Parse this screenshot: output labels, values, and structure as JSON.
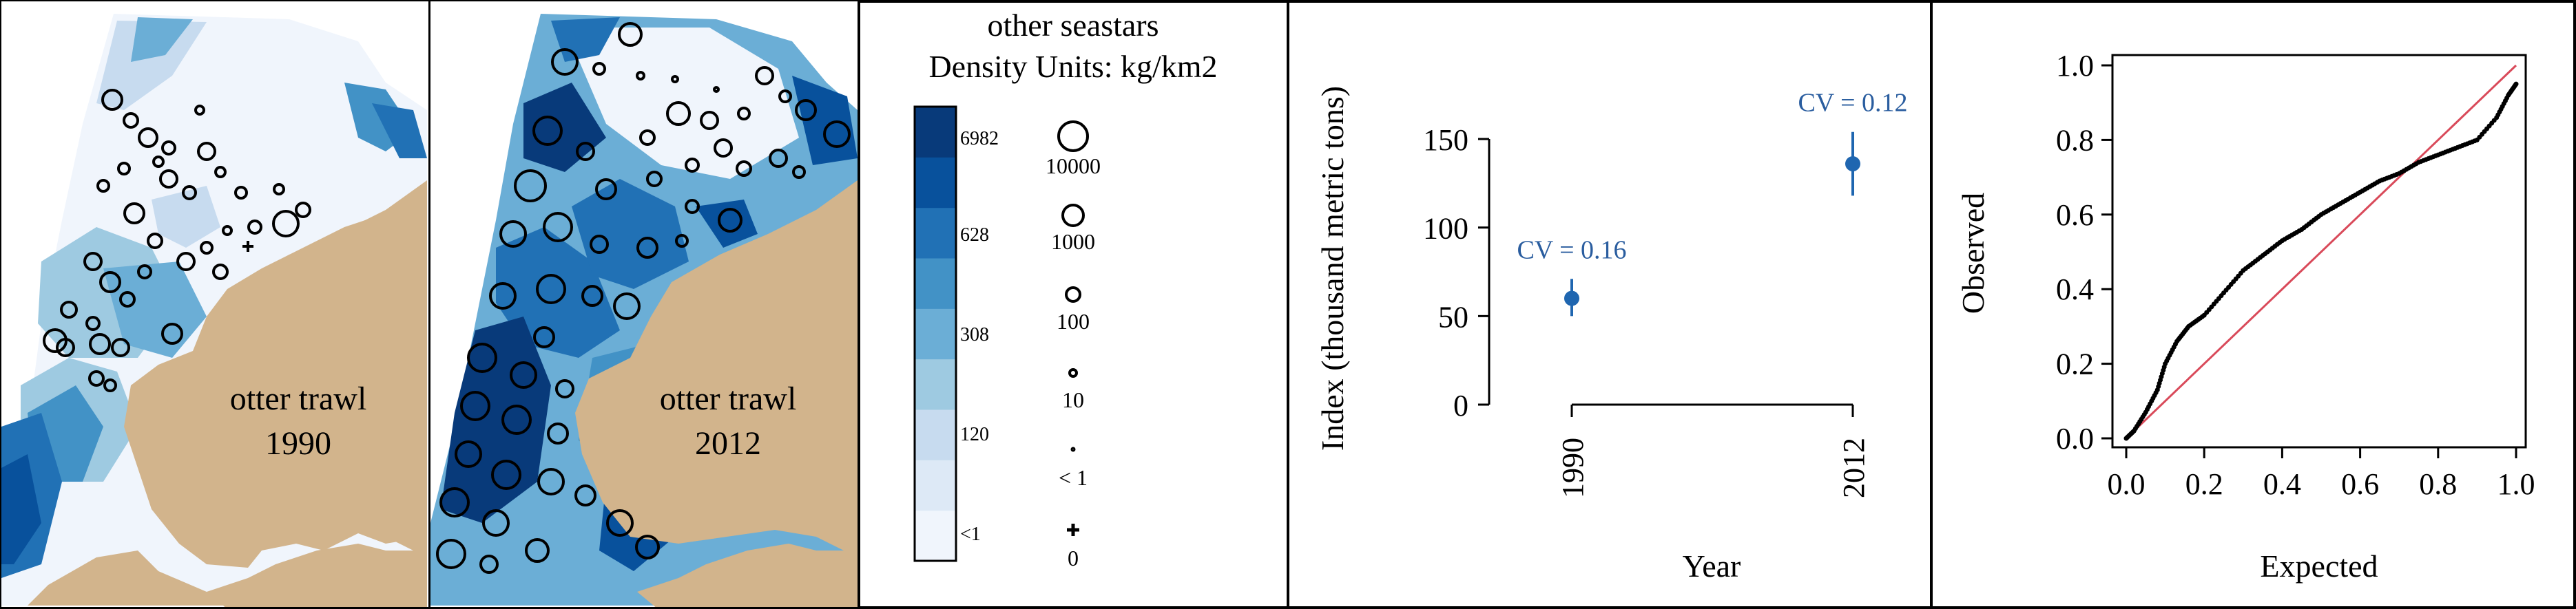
{
  "maps": [
    {
      "gear": "otter trawl",
      "year": "1990"
    },
    {
      "gear": "otter trawl",
      "year": "2012"
    }
  ],
  "legend": {
    "title": "other seastars",
    "subtitle": "Density Units: kg/km2",
    "color_breaks": [
      "6982",
      "628",
      "308",
      "120",
      "<1"
    ],
    "color_scale": [
      "#f0f5fc",
      "#dde9f6",
      "#c7dbef",
      "#9ecae1",
      "#6baed6",
      "#4292c6",
      "#2171b5",
      "#08519c",
      "#083a7a"
    ],
    "bubble_sizes": [
      "10000",
      "1000",
      "100",
      "10",
      "< 1",
      "0"
    ]
  },
  "colors": {
    "land": "#d2b48c",
    "index_point": "#1f66b0",
    "annotation_text": "#2a5d9f",
    "reference_line": "#d94a5a",
    "qq_points": "#000000"
  },
  "chart_data": [
    {
      "type": "scatter",
      "xlabel": "Year",
      "ylabel": "Index (thousand metric tons)",
      "categories": [
        "1990",
        "2012"
      ],
      "values": [
        60,
        136
      ],
      "error_bars": [
        [
          50,
          71
        ],
        [
          118,
          154
        ]
      ],
      "annotations": [
        "CV = 0.16",
        "CV = 0.12"
      ],
      "yticks": [
        "0",
        "50",
        "100",
        "150"
      ],
      "ylim": [
        0,
        170
      ]
    },
    {
      "type": "scatter",
      "xlabel": "Expected",
      "ylabel": "Observed",
      "xlim": [
        0,
        1
      ],
      "ylim": [
        0,
        1
      ],
      "xticks": [
        "0.0",
        "0.2",
        "0.4",
        "0.6",
        "0.8",
        "1.0"
      ],
      "yticks": [
        "0.0",
        "0.2",
        "0.4",
        "0.6",
        "0.8",
        "1.0"
      ],
      "reference_line": "y = x",
      "curve": {
        "x": [
          0.0,
          0.02,
          0.05,
          0.08,
          0.1,
          0.13,
          0.16,
          0.2,
          0.25,
          0.3,
          0.35,
          0.4,
          0.45,
          0.5,
          0.55,
          0.6,
          0.65,
          0.7,
          0.75,
          0.8,
          0.85,
          0.9,
          0.95,
          0.98,
          1.0
        ],
        "y": [
          0.0,
          0.02,
          0.07,
          0.13,
          0.2,
          0.26,
          0.3,
          0.33,
          0.39,
          0.45,
          0.49,
          0.53,
          0.56,
          0.6,
          0.63,
          0.66,
          0.69,
          0.71,
          0.74,
          0.76,
          0.78,
          0.8,
          0.86,
          0.92,
          0.95
        ]
      }
    }
  ]
}
